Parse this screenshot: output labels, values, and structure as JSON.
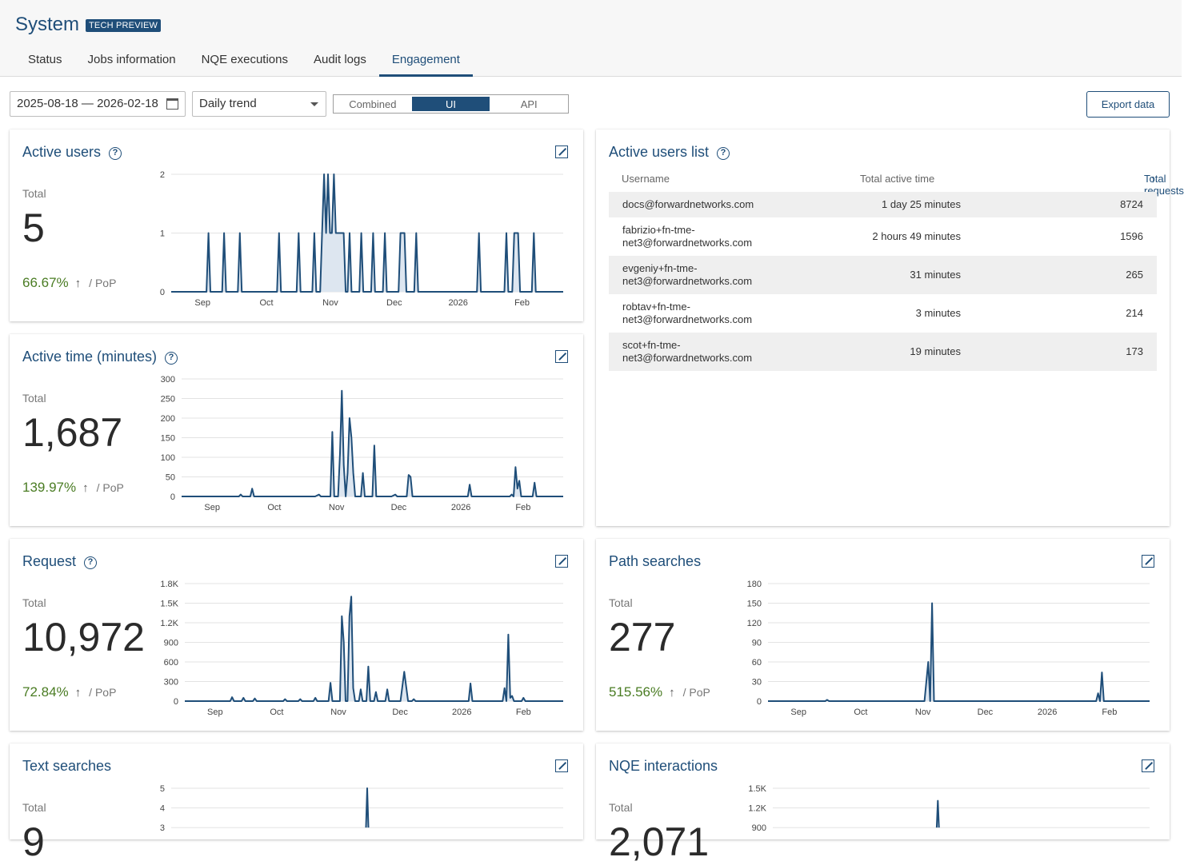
{
  "header": {
    "title": "System",
    "badge": "TECH PREVIEW",
    "tabs": [
      "Status",
      "Jobs information",
      "NQE executions",
      "Audit logs",
      "Engagement"
    ],
    "active_tab": "Engagement"
  },
  "toolbar": {
    "date_range": "2025-08-18 — 2026-02-18",
    "trend_select": "Daily trend",
    "segments": [
      "Combined",
      "UI",
      "API"
    ],
    "active_segment": "UI",
    "export_label": "Export data"
  },
  "cards": {
    "active_users": {
      "title": "Active users",
      "total_label": "Total",
      "total": "5",
      "pop": "66.67%",
      "pop_label": "/ PoP"
    },
    "active_time": {
      "title": "Active time (minutes)",
      "total_label": "Total",
      "total": "1,687",
      "pop": "139.97%",
      "pop_label": "/ PoP"
    },
    "request": {
      "title": "Request",
      "total_label": "Total",
      "total": "10,972",
      "pop": "72.84%",
      "pop_label": "/ PoP"
    },
    "path_searches": {
      "title": "Path searches",
      "total_label": "Total",
      "total": "277",
      "pop": "515.56%",
      "pop_label": "/ PoP"
    },
    "text_searches": {
      "title": "Text searches",
      "total_label": "Total",
      "total": "9"
    },
    "nqe_interactions": {
      "title": "NQE interactions",
      "total_label": "Total",
      "total": "2,071"
    }
  },
  "users_list": {
    "title": "Active users list",
    "columns": {
      "username": "Username",
      "time": "Total active time",
      "requests": "Total requests"
    },
    "rows": [
      {
        "user": [
          "docs@forwardnetworks.com"
        ],
        "time": "1 day 25 minutes",
        "requests": "8724"
      },
      {
        "user": [
          "fabrizio+fn-tme-",
          "net3@forwardnetworks.com"
        ],
        "time": "2 hours 49 minutes",
        "requests": "1596"
      },
      {
        "user": [
          "evgeniy+fn-tme-",
          "net3@forwardnetworks.com"
        ],
        "time": "31 minutes",
        "requests": "265"
      },
      {
        "user": [
          "robtav+fn-tme-",
          "net3@forwardnetworks.com"
        ],
        "time": "3 minutes",
        "requests": "214"
      },
      {
        "user": [
          "scot+fn-tme-",
          "net3@forwardnetworks.com"
        ],
        "time": "19 minutes",
        "requests": "173"
      }
    ]
  },
  "chart_data": [
    {
      "id": "active_users",
      "type": "area",
      "ylim": [
        0,
        2
      ],
      "yticks": [
        "0",
        "1",
        "2"
      ],
      "xticks": [
        "Sep",
        "Oct",
        "Nov",
        "Dec",
        "2026",
        "Feb"
      ],
      "points": [
        [
          0,
          0
        ],
        [
          0.09,
          0
        ],
        [
          0.095,
          1
        ],
        [
          0.1,
          0
        ],
        [
          0.13,
          0
        ],
        [
          0.135,
          1
        ],
        [
          0.14,
          0
        ],
        [
          0.17,
          0
        ],
        [
          0.175,
          1
        ],
        [
          0.18,
          0
        ],
        [
          0.27,
          0
        ],
        [
          0.275,
          1
        ],
        [
          0.28,
          0
        ],
        [
          0.32,
          0
        ],
        [
          0.325,
          1
        ],
        [
          0.33,
          0
        ],
        [
          0.36,
          0
        ],
        [
          0.365,
          1
        ],
        [
          0.37,
          0
        ],
        [
          0.38,
          0
        ],
        [
          0.385,
          1
        ],
        [
          0.39,
          2
        ],
        [
          0.395,
          1
        ],
        [
          0.4,
          2
        ],
        [
          0.405,
          1
        ],
        [
          0.41,
          1
        ],
        [
          0.415,
          2
        ],
        [
          0.42,
          1
        ],
        [
          0.44,
          1
        ],
        [
          0.445,
          0
        ],
        [
          0.45,
          0
        ],
        [
          0.455,
          1
        ],
        [
          0.46,
          0
        ],
        [
          0.48,
          0
        ],
        [
          0.485,
          1
        ],
        [
          0.49,
          0
        ],
        [
          0.51,
          0
        ],
        [
          0.515,
          1
        ],
        [
          0.52,
          0
        ],
        [
          0.54,
          0
        ],
        [
          0.545,
          1
        ],
        [
          0.55,
          0
        ],
        [
          0.58,
          0
        ],
        [
          0.585,
          1
        ],
        [
          0.595,
          1
        ],
        [
          0.6,
          0
        ],
        [
          0.62,
          0
        ],
        [
          0.625,
          1
        ],
        [
          0.63,
          0
        ],
        [
          0.78,
          0
        ],
        [
          0.785,
          1
        ],
        [
          0.79,
          0
        ],
        [
          0.85,
          0
        ],
        [
          0.855,
          1
        ],
        [
          0.86,
          0
        ],
        [
          0.87,
          0
        ],
        [
          0.875,
          1
        ],
        [
          0.885,
          1
        ],
        [
          0.89,
          0
        ],
        [
          0.92,
          0
        ],
        [
          0.925,
          1
        ],
        [
          0.93,
          0
        ],
        [
          1,
          0
        ]
      ]
    },
    {
      "id": "active_time",
      "type": "area",
      "ylim": [
        0,
        300
      ],
      "yticks": [
        "0",
        "50",
        "100",
        "150",
        "200",
        "250",
        "300"
      ],
      "xticks": [
        "Sep",
        "Oct",
        "Nov",
        "Dec",
        "2026",
        "Feb"
      ],
      "points": [
        [
          0,
          0
        ],
        [
          0.15,
          0
        ],
        [
          0.155,
          5
        ],
        [
          0.16,
          0
        ],
        [
          0.18,
          0
        ],
        [
          0.185,
          20
        ],
        [
          0.19,
          0
        ],
        [
          0.35,
          0
        ],
        [
          0.36,
          5
        ],
        [
          0.365,
          0
        ],
        [
          0.39,
          0
        ],
        [
          0.395,
          165
        ],
        [
          0.4,
          0
        ],
        [
          0.41,
          0
        ],
        [
          0.415,
          110
        ],
        [
          0.42,
          270
        ],
        [
          0.425,
          80
        ],
        [
          0.43,
          0
        ],
        [
          0.435,
          60
        ],
        [
          0.44,
          200
        ],
        [
          0.445,
          150
        ],
        [
          0.45,
          60
        ],
        [
          0.455,
          0
        ],
        [
          0.47,
          0
        ],
        [
          0.475,
          60
        ],
        [
          0.48,
          0
        ],
        [
          0.5,
          0
        ],
        [
          0.505,
          130
        ],
        [
          0.51,
          0
        ],
        [
          0.55,
          0
        ],
        [
          0.56,
          5
        ],
        [
          0.565,
          0
        ],
        [
          0.59,
          0
        ],
        [
          0.595,
          55
        ],
        [
          0.6,
          50
        ],
        [
          0.605,
          0
        ],
        [
          0.75,
          0
        ],
        [
          0.755,
          30
        ],
        [
          0.76,
          0
        ],
        [
          0.86,
          0
        ],
        [
          0.865,
          5
        ],
        [
          0.87,
          0
        ],
        [
          0.875,
          75
        ],
        [
          0.88,
          20
        ],
        [
          0.885,
          40
        ],
        [
          0.89,
          0
        ],
        [
          0.92,
          0
        ],
        [
          0.925,
          35
        ],
        [
          0.93,
          0
        ],
        [
          1,
          0
        ]
      ]
    },
    {
      "id": "request",
      "type": "area",
      "ylim": [
        0,
        1800
      ],
      "yticks": [
        "0",
        "300",
        "600",
        "900",
        "1.2K",
        "1.5K",
        "1.8K"
      ],
      "xticks": [
        "Sep",
        "Oct",
        "Nov",
        "Dec",
        "2026",
        "Feb"
      ],
      "points": [
        [
          0,
          0
        ],
        [
          0.12,
          0
        ],
        [
          0.125,
          60
        ],
        [
          0.13,
          0
        ],
        [
          0.15,
          0
        ],
        [
          0.155,
          50
        ],
        [
          0.16,
          0
        ],
        [
          0.18,
          0
        ],
        [
          0.185,
          40
        ],
        [
          0.19,
          0
        ],
        [
          0.26,
          0
        ],
        [
          0.265,
          30
        ],
        [
          0.27,
          0
        ],
        [
          0.3,
          0
        ],
        [
          0.305,
          30
        ],
        [
          0.31,
          0
        ],
        [
          0.34,
          0
        ],
        [
          0.345,
          50
        ],
        [
          0.35,
          0
        ],
        [
          0.38,
          0
        ],
        [
          0.385,
          280
        ],
        [
          0.39,
          0
        ],
        [
          0.41,
          0
        ],
        [
          0.415,
          1300
        ],
        [
          0.42,
          900
        ],
        [
          0.425,
          0
        ],
        [
          0.43,
          0
        ],
        [
          0.435,
          1300
        ],
        [
          0.44,
          1600
        ],
        [
          0.445,
          200
        ],
        [
          0.45,
          0
        ],
        [
          0.46,
          0
        ],
        [
          0.465,
          180
        ],
        [
          0.47,
          0
        ],
        [
          0.48,
          0
        ],
        [
          0.485,
          530
        ],
        [
          0.49,
          0
        ],
        [
          0.5,
          0
        ],
        [
          0.505,
          140
        ],
        [
          0.51,
          0
        ],
        [
          0.53,
          0
        ],
        [
          0.535,
          180
        ],
        [
          0.54,
          0
        ],
        [
          0.57,
          0
        ],
        [
          0.58,
          450
        ],
        [
          0.59,
          0
        ],
        [
          0.6,
          0
        ],
        [
          0.605,
          30
        ],
        [
          0.61,
          0
        ],
        [
          0.75,
          0
        ],
        [
          0.755,
          270
        ],
        [
          0.76,
          0
        ],
        [
          0.84,
          0
        ],
        [
          0.845,
          200
        ],
        [
          0.85,
          0
        ],
        [
          0.855,
          1020
        ],
        [
          0.86,
          50
        ],
        [
          0.865,
          80
        ],
        [
          0.87,
          0
        ],
        [
          0.89,
          0
        ],
        [
          0.895,
          50
        ],
        [
          0.9,
          0
        ],
        [
          1,
          0
        ]
      ]
    },
    {
      "id": "path_searches",
      "type": "area",
      "ylim": [
        0,
        180
      ],
      "yticks": [
        "0",
        "30",
        "60",
        "90",
        "120",
        "150",
        "180"
      ],
      "xticks": [
        "Sep",
        "Oct",
        "Nov",
        "Dec",
        "2026",
        "Feb"
      ],
      "points": [
        [
          0,
          0
        ],
        [
          0.15,
          0
        ],
        [
          0.155,
          2
        ],
        [
          0.16,
          0
        ],
        [
          0.41,
          0
        ],
        [
          0.42,
          60
        ],
        [
          0.425,
          0
        ],
        [
          0.43,
          150
        ],
        [
          0.435,
          0
        ],
        [
          0.86,
          0
        ],
        [
          0.865,
          12
        ],
        [
          0.87,
          0
        ],
        [
          0.875,
          44
        ],
        [
          0.88,
          0
        ],
        [
          1,
          0
        ]
      ]
    },
    {
      "id": "text_searches",
      "type": "area",
      "ylim": [
        3,
        5
      ],
      "yticks": [
        "3",
        "4",
        "5"
      ],
      "xticks": [],
      "points": [
        [
          0.497,
          3
        ],
        [
          0.5,
          5
        ],
        [
          0.503,
          3
        ]
      ]
    },
    {
      "id": "nqe_interactions",
      "type": "area",
      "ylim": [
        900,
        1500
      ],
      "yticks": [
        "900",
        "1.2K",
        "1.5K"
      ],
      "xticks": [],
      "points": [
        [
          0.435,
          900
        ],
        [
          0.438,
          1310
        ],
        [
          0.441,
          900
        ]
      ]
    }
  ],
  "colors": {
    "accent": "#1f4e79",
    "positive": "#4a7c23",
    "fill": "#dde6f0"
  }
}
